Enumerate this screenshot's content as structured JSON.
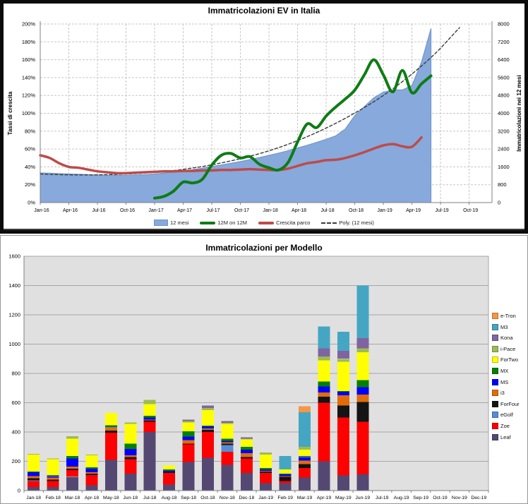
{
  "chart_data": [
    {
      "type": "line",
      "title": "Immatricolazioni EV in Italia",
      "left_axis": {
        "title": "Tassi di crescita",
        "min": 0,
        "max": 200,
        "step": 20,
        "unit": "%"
      },
      "right_axis": {
        "title": "Immatricolazioni nei 12 mesi",
        "min": 0,
        "max": 8000,
        "step": 800
      },
      "x_months_total": 48,
      "x_tick_labels": [
        "Jan-16",
        "Apr-16",
        "Jul-16",
        "Oct-16",
        "Jan-17",
        "Apr-17",
        "Jul-17",
        "Oct-17",
        "Jan-18",
        "Apr-18",
        "Jul-18",
        "Oct-18",
        "Jan-19",
        "Apr-19",
        "Jul-19",
        "Oct-19"
      ],
      "grid": true,
      "legend_position": "bottom",
      "series": [
        {
          "name": "12 mesi",
          "kind": "area",
          "axis": "right",
          "color": "#87A9DC",
          "edge": "#6E93C8",
          "start_month": 0,
          "values": [
            1330,
            1320,
            1300,
            1285,
            1270,
            1255,
            1240,
            1225,
            1220,
            1225,
            1240,
            1260,
            1285,
            1320,
            1365,
            1420,
            1480,
            1545,
            1615,
            1690,
            1765,
            1845,
            1930,
            2020,
            2120,
            2220,
            2330,
            2450,
            2570,
            2700,
            2840,
            2990,
            3300,
            3900,
            4300,
            4700,
            4950,
            5050,
            5050,
            5250,
            6300,
            7800
          ]
        },
        {
          "name": "12M on 12M",
          "kind": "line",
          "axis": "left",
          "color": "#0E7C14",
          "stroke_width": 4,
          "start_month": 12,
          "values": [
            5,
            7,
            13,
            23,
            22,
            26,
            42,
            53,
            55,
            50,
            51.5,
            43,
            39,
            36.5,
            45,
            68,
            88,
            84,
            97,
            107,
            116,
            126,
            143,
            160,
            143,
            124,
            148,
            123,
            133,
            142
          ]
        },
        {
          "name": "Crescita parco",
          "kind": "line",
          "axis": "left",
          "color": "#BE4B48",
          "stroke_width": 3.5,
          "start_month": 0,
          "values": [
            53,
            50,
            44,
            40,
            39,
            37,
            35,
            34,
            33,
            33,
            33.5,
            34,
            34.5,
            35,
            35,
            35.5,
            35.5,
            36,
            36,
            36.5,
            36.5,
            37,
            37.5,
            37,
            36.5,
            36.5,
            38,
            41,
            44,
            45.5,
            47.5,
            48,
            50,
            53,
            56.5,
            60.5,
            64,
            65.5,
            63,
            62.5,
            73
          ]
        },
        {
          "name": "Poly. (12 mesi)",
          "kind": "line",
          "axis": "left",
          "color": "#3b3b3b",
          "stroke_width": 1.4,
          "dashed": true,
          "start_month": 0,
          "values": [
            32,
            31.6,
            31.3,
            31.1,
            31,
            31,
            31.1,
            31.3,
            31.6,
            32,
            32.5,
            33.1,
            33.9,
            34.8,
            35.9,
            37.2,
            38.7,
            40.4,
            42.3,
            44.4,
            46.7,
            49.2,
            51.9,
            54.8,
            58,
            61.5,
            65.3,
            69.4,
            73.8,
            78.5,
            83.5,
            88.8,
            94.4,
            100.3,
            106.5,
            113,
            120,
            127.5,
            135.5,
            144,
            153,
            162.5,
            173,
            184.5,
            196
          ]
        }
      ]
    },
    {
      "type": "bar",
      "stacked": true,
      "title": "Immatricolazioni per Modello",
      "categories": [
        "Jan-18",
        "Feb-18",
        "Mar-18",
        "Apr-18",
        "May-18",
        "Jun-18",
        "Jul-18",
        "Aug-18",
        "Sep-18",
        "Oct-18",
        "Nov-18",
        "Dec-18",
        "Jan-19",
        "Feb-19",
        "Mar-19",
        "Apr-19",
        "May-19",
        "Jun-19",
        "Jul-19",
        "Aug-19",
        "Sep-19",
        "Oct-19",
        "Nov-19",
        "Dec-19"
      ],
      "ylim": [
        0,
        1600
      ],
      "ystep": 200,
      "plot_bg": "#E0E0E0",
      "legend_position": "right",
      "legend_order_top_to_bottom": [
        "e-Tron",
        "M3",
        "Kona",
        "i-Pace",
        "ForTwo",
        "MX",
        "MS",
        "i3",
        "ForFour",
        "eGolf",
        "Zoe",
        "Leaf"
      ],
      "series": [
        {
          "name": "Leaf",
          "color": "#544873",
          "values": [
            25,
            25,
            95,
            35,
            210,
            115,
            400,
            40,
            195,
            225,
            175,
            120,
            50,
            50,
            90,
            200,
            105,
            110,
            0,
            0,
            0,
            0,
            0,
            0
          ]
        },
        {
          "name": "Zoe",
          "color": "#FF0000",
          "values": [
            40,
            40,
            45,
            70,
            185,
            100,
            70,
            80,
            120,
            175,
            90,
            100,
            70,
            15,
            65,
            400,
            395,
            360,
            0,
            0,
            0,
            0,
            0,
            0
          ]
        },
        {
          "name": "eGolf",
          "color": "#558ED5",
          "values": [
            5,
            0,
            0,
            0,
            0,
            0,
            0,
            0,
            0,
            0,
            45,
            0,
            0,
            0,
            0,
            0,
            0,
            0,
            0,
            0,
            0,
            0,
            0,
            0
          ]
        },
        {
          "name": "ForFour",
          "color": "#141414",
          "values": [
            15,
            10,
            10,
            10,
            15,
            15,
            10,
            5,
            5,
            18,
            10,
            10,
            10,
            30,
            25,
            40,
            80,
            135,
            0,
            0,
            0,
            0,
            0,
            0
          ]
        },
        {
          "name": "i3",
          "color": "#E26B0A",
          "values": [
            15,
            15,
            15,
            10,
            20,
            10,
            5,
            0,
            25,
            5,
            10,
            25,
            5,
            5,
            25,
            30,
            70,
            50,
            0,
            0,
            0,
            0,
            0,
            0
          ]
        },
        {
          "name": "MS",
          "color": "#0000FF",
          "values": [
            25,
            10,
            55,
            25,
            5,
            45,
            15,
            10,
            25,
            16,
            10,
            25,
            10,
            10,
            25,
            40,
            25,
            50,
            0,
            0,
            0,
            0,
            0,
            0
          ]
        },
        {
          "name": "MX",
          "color": "#038000",
          "values": [
            5,
            5,
            15,
            10,
            10,
            35,
            10,
            10,
            35,
            5,
            15,
            20,
            10,
            5,
            5,
            35,
            5,
            50,
            0,
            0,
            0,
            0,
            0,
            0
          ]
        },
        {
          "name": "ForTwo",
          "color": "#FFFF00",
          "values": [
            115,
            110,
            120,
            80,
            85,
            135,
            80,
            25,
            60,
            105,
            100,
            50,
            90,
            30,
            45,
            145,
            200,
            190,
            0,
            0,
            0,
            0,
            0,
            0
          ]
        },
        {
          "name": "i-Pace",
          "color": "#9BBB59",
          "values": [
            5,
            5,
            15,
            5,
            0,
            10,
            30,
            0,
            10,
            15,
            8,
            5,
            15,
            0,
            20,
            25,
            20,
            25,
            0,
            0,
            0,
            0,
            0,
            0
          ]
        },
        {
          "name": "Kona",
          "color": "#8064A2",
          "values": [
            0,
            0,
            0,
            0,
            0,
            0,
            0,
            0,
            10,
            16,
            12,
            10,
            0,
            0,
            0,
            55,
            55,
            70,
            0,
            0,
            0,
            0,
            0,
            0
          ]
        },
        {
          "name": "M3",
          "color": "#45A6C3",
          "values": [
            0,
            0,
            0,
            0,
            0,
            0,
            0,
            0,
            0,
            0,
            0,
            0,
            0,
            90,
            235,
            150,
            130,
            360,
            0,
            0,
            0,
            0,
            0,
            0
          ]
        },
        {
          "name": "e-Tron",
          "color": "#F79646",
          "values": [
            0,
            0,
            0,
            0,
            0,
            0,
            0,
            0,
            0,
            0,
            0,
            0,
            0,
            0,
            40,
            0,
            0,
            0,
            0,
            0,
            0,
            0,
            0,
            0
          ]
        }
      ]
    }
  ]
}
